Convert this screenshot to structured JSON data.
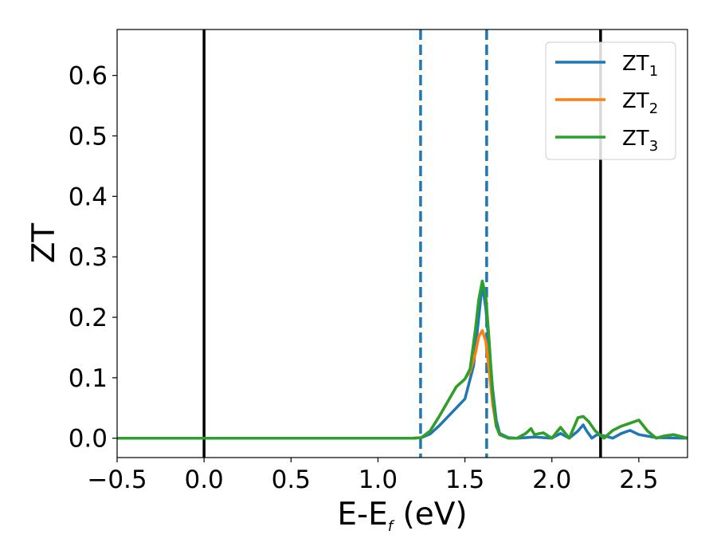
{
  "chart_data": {
    "type": "line",
    "xlabel_main": "E-E",
    "xlabel_sub": "f",
    "xlabel_unit": " (eV)",
    "ylabel": "ZT",
    "xlim": [
      -0.5,
      2.78
    ],
    "ylim": [
      -0.032,
      0.676
    ],
    "xticks": [
      -0.5,
      0.0,
      0.5,
      1.0,
      1.5,
      2.0,
      2.5
    ],
    "xtick_labels": [
      "−0.5",
      "0.0",
      "0.5",
      "1.0",
      "1.5",
      "2.0",
      "2.5"
    ],
    "yticks": [
      0.0,
      0.1,
      0.2,
      0.3,
      0.4,
      0.5,
      0.6
    ],
    "ytick_labels": [
      "0.0",
      "0.1",
      "0.2",
      "0.3",
      "0.4",
      "0.5",
      "0.6"
    ],
    "grid": false,
    "legend_position": "top-right",
    "vlines": [
      {
        "x": 0.0,
        "style": "solid",
        "color": "#000000"
      },
      {
        "x": 2.28,
        "style": "solid",
        "color": "#000000"
      },
      {
        "x": 1.245,
        "style": "dashed",
        "color": "#1f77b4"
      },
      {
        "x": 1.625,
        "style": "dashed",
        "color": "#1f77b4"
      }
    ],
    "series": [
      {
        "name": "ZT",
        "sub": "1",
        "color": "#1f77b4",
        "x": [
          -0.5,
          1.2,
          1.25,
          1.3,
          1.35,
          1.4,
          1.45,
          1.5,
          1.55,
          1.58,
          1.6,
          1.62,
          1.64,
          1.66,
          1.68,
          1.7,
          1.75,
          1.8,
          1.9,
          2.0,
          2.05,
          2.1,
          2.15,
          2.18,
          2.2,
          2.23,
          2.26,
          2.3,
          2.35,
          2.4,
          2.45,
          2.5,
          2.6,
          2.78
        ],
        "y": [
          0.0,
          0.0,
          0.001,
          0.007,
          0.02,
          0.035,
          0.05,
          0.065,
          0.12,
          0.2,
          0.255,
          0.215,
          0.15,
          0.08,
          0.03,
          0.008,
          0.001,
          0.0,
          0.002,
          0.0,
          0.008,
          0.0,
          0.012,
          0.022,
          0.012,
          0.0,
          0.006,
          0.004,
          0.0,
          0.008,
          0.013,
          0.006,
          0.001,
          0.0
        ]
      },
      {
        "name": "ZT",
        "sub": "2",
        "color": "#ff7f0e",
        "x": [
          -0.5,
          1.2,
          1.25,
          1.3,
          1.35,
          1.4,
          1.45,
          1.5,
          1.53,
          1.56,
          1.58,
          1.6,
          1.62,
          1.64,
          1.66,
          1.68,
          1.7,
          1.75,
          1.8,
          1.85,
          1.88,
          1.9,
          1.95,
          2.0,
          2.05,
          2.1,
          2.15,
          2.18,
          2.21,
          2.25,
          2.3,
          2.35,
          2.4,
          2.45,
          2.5,
          2.55,
          2.6,
          2.65,
          2.7,
          2.78
        ],
        "y": [
          0.0,
          0.0,
          0.001,
          0.012,
          0.035,
          0.06,
          0.085,
          0.098,
          0.11,
          0.14,
          0.168,
          0.178,
          0.16,
          0.11,
          0.055,
          0.02,
          0.006,
          0.0,
          0.0,
          0.008,
          0.016,
          0.006,
          0.009,
          0.0,
          0.018,
          0.0,
          0.034,
          0.036,
          0.028,
          0.012,
          0.0,
          0.013,
          0.02,
          0.025,
          0.03,
          0.012,
          0.0,
          0.004,
          0.006,
          0.0
        ]
      },
      {
        "name": "ZT",
        "sub": "3",
        "color": "#2ca02c",
        "x": [
          -0.5,
          1.2,
          1.25,
          1.3,
          1.35,
          1.4,
          1.45,
          1.5,
          1.53,
          1.56,
          1.58,
          1.6,
          1.62,
          1.64,
          1.66,
          1.68,
          1.7,
          1.75,
          1.8,
          1.85,
          1.88,
          1.9,
          1.95,
          2.0,
          2.05,
          2.1,
          2.15,
          2.18,
          2.21,
          2.25,
          2.3,
          2.35,
          2.4,
          2.45,
          2.5,
          2.55,
          2.6,
          2.65,
          2.7,
          2.78
        ],
        "y": [
          0.0,
          0.0,
          0.001,
          0.012,
          0.035,
          0.06,
          0.085,
          0.098,
          0.115,
          0.18,
          0.23,
          0.26,
          0.235,
          0.16,
          0.07,
          0.02,
          0.006,
          0.0,
          0.0,
          0.008,
          0.016,
          0.006,
          0.009,
          0.0,
          0.018,
          0.0,
          0.034,
          0.036,
          0.028,
          0.012,
          0.0,
          0.013,
          0.02,
          0.025,
          0.03,
          0.012,
          0.0,
          0.004,
          0.006,
          0.0
        ]
      }
    ]
  }
}
